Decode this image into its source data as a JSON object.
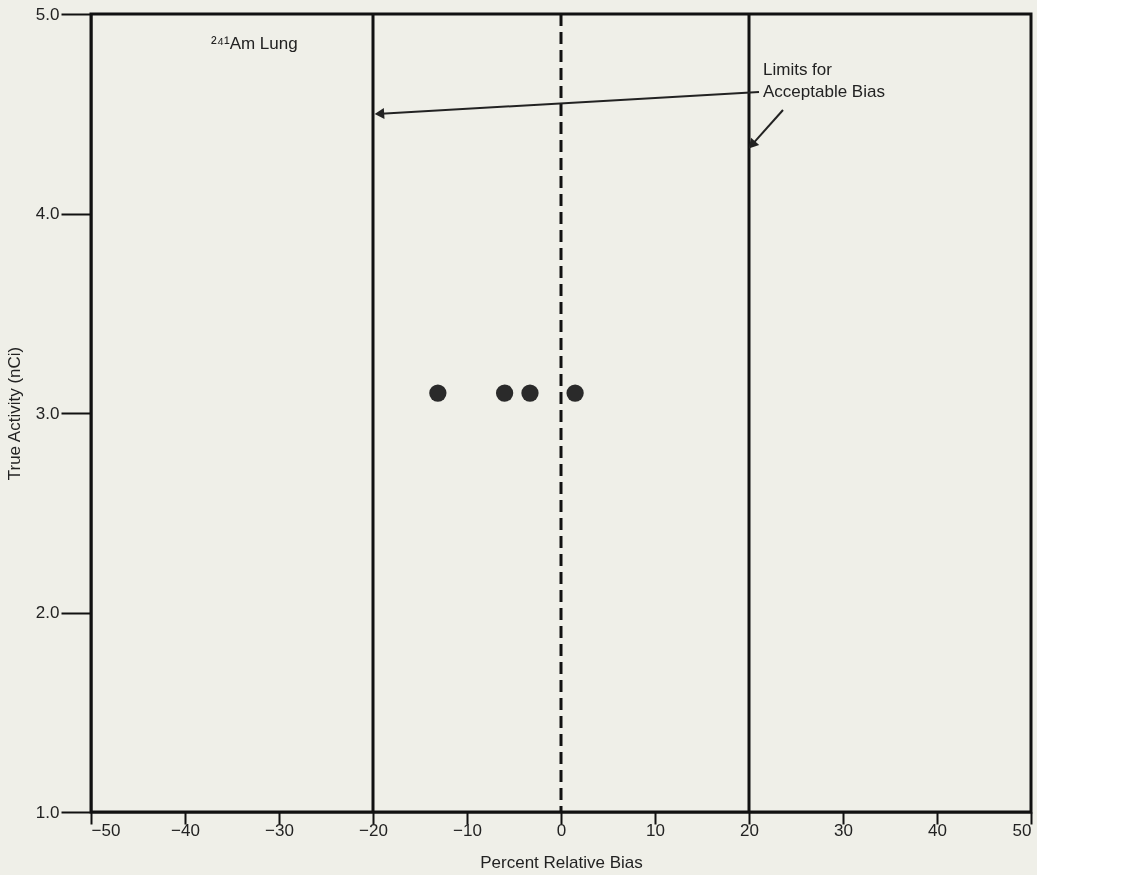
{
  "chart_data": {
    "type": "scatter",
    "xlabel": "Percent Relative Bias",
    "ylabel": "True Activity (nCi)",
    "x": [
      -13.1,
      -6.0,
      -3.3,
      1.5
    ],
    "values": [
      3.1,
      3.1,
      3.1,
      3.1
    ],
    "color": "#2a2a2a",
    "marker": "circle",
    "xlim": [
      -50,
      50
    ],
    "xticks": [
      -50,
      -40,
      -30,
      -20,
      -10,
      0,
      10,
      20,
      30,
      40,
      50
    ],
    "ylim": [
      1,
      5
    ],
    "yticks": [
      {
        "value": 1,
        "label": "1.0"
      },
      {
        "value": 2,
        "label": "2.0"
      },
      {
        "value": 3,
        "label": "3.0"
      },
      {
        "value": 4,
        "label": "4.0"
      },
      {
        "value": 5,
        "label": "5.0"
      }
    ],
    "ref_lines": [
      {
        "axis": "x",
        "value": -20,
        "color": "#111111",
        "line_style": "solid"
      },
      {
        "axis": "x",
        "value": 0,
        "color": "#111111",
        "line_style": "dashed"
      },
      {
        "axis": "x",
        "value": 20,
        "color": "#111111",
        "line_style": "solid"
      }
    ],
    "annotations": [
      "²⁴¹Am Lung",
      {
        "text": "Limits for\nAcceptable Bias",
        "x": 20,
        "y": 4.35
      }
    ],
    "grid": false
  }
}
